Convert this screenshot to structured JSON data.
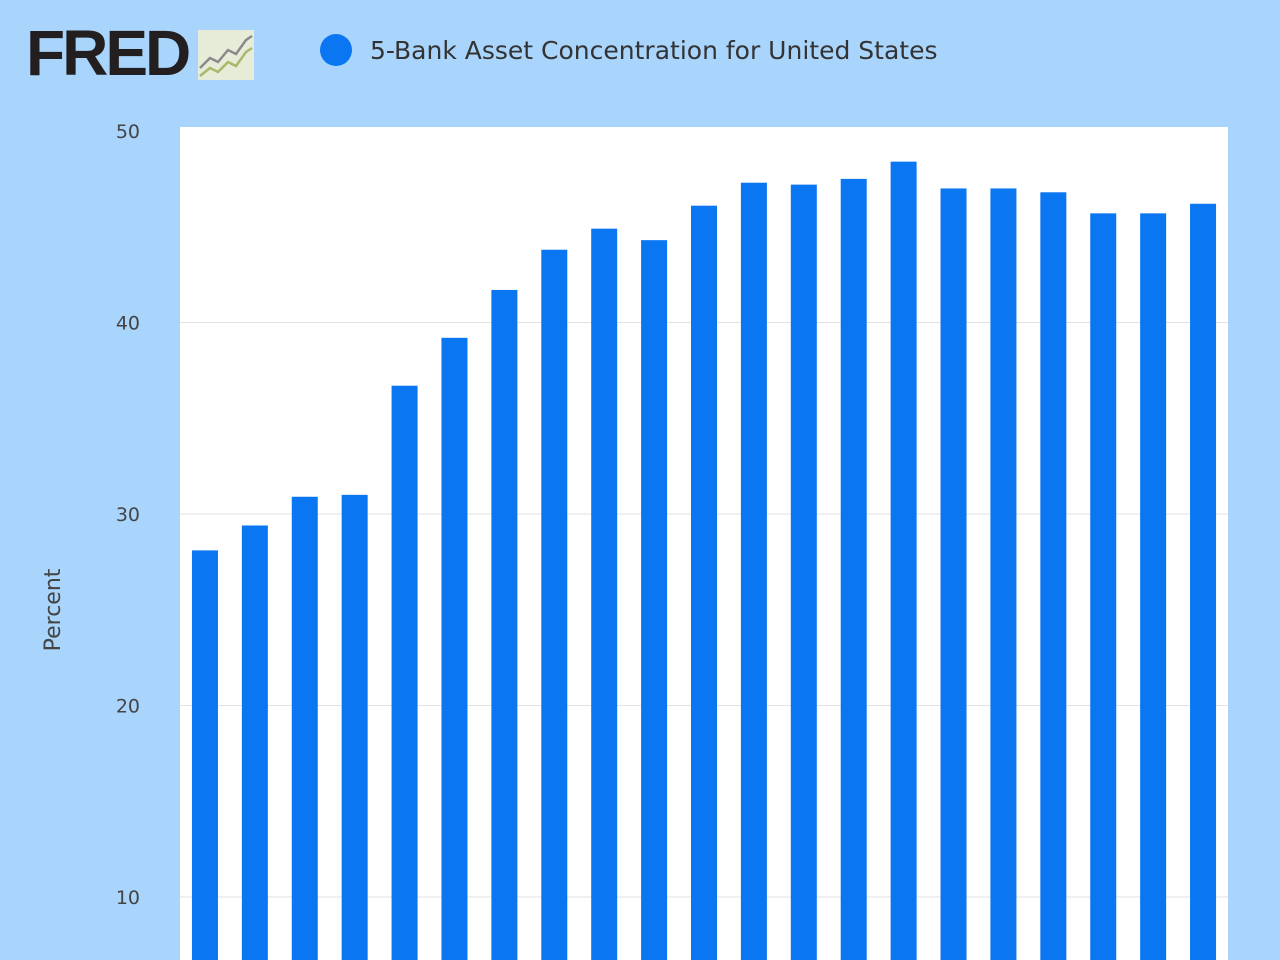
{
  "logo": {
    "text": "FRED"
  },
  "chart_data": {
    "type": "bar",
    "title": "",
    "legend": [
      {
        "name": "5-Bank Asset Concentration for United States",
        "color": "#0a76f1"
      }
    ],
    "legend_placement": "top",
    "ylabel": "Percent",
    "xlabel": "",
    "ylim": [
      0,
      50
    ],
    "yticks": [
      10,
      20,
      30,
      40,
      50
    ],
    "grid": true,
    "series": [
      {
        "name": "5-Bank Asset Concentration for United States",
        "values": [
          28.1,
          29.4,
          30.9,
          31.0,
          36.7,
          39.2,
          41.7,
          43.8,
          44.9,
          44.3,
          46.1,
          47.3,
          47.2,
          47.5,
          48.4,
          47.0,
          47.0,
          46.8,
          45.7,
          45.7,
          46.2
        ]
      }
    ],
    "colors": {
      "bar": "#0a76f1",
      "plot_bg": "#ffffff",
      "page_bg": "#a9d4fb",
      "grid": "#e2e2e2"
    }
  }
}
